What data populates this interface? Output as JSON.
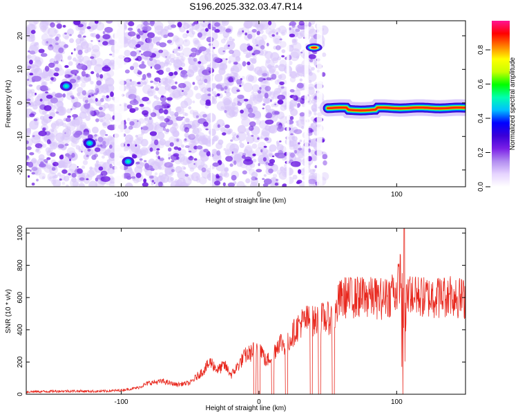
{
  "title": "S196.2025.332.03.47.R14",
  "chart_data": [
    {
      "type": "heatmap",
      "name": "spectrogram",
      "xlabel": "Height of straight line (km)",
      "ylabel": "Frequency (Hz)",
      "xlim": [
        -169,
        150
      ],
      "ylim": [
        -25,
        24.5
      ],
      "xticks": [
        -100,
        0,
        100
      ],
      "xtick_labels": [
        "-100",
        "0",
        "100"
      ],
      "yticks": [
        20,
        10,
        0,
        -10,
        -20
      ],
      "ytick_labels": [
        "20",
        "10",
        "0",
        "-10",
        "-20"
      ],
      "colorbar": {
        "label": "Normalized spectral amplitude",
        "range": [
          0,
          0.97
        ],
        "ticks": [
          0,
          0.2,
          0.4,
          0.6,
          0.8
        ],
        "tick_labels": [
          "0.0",
          "0.2",
          "0.4",
          "0.6",
          "0.8"
        ],
        "colormap": [
          "#ffffff",
          "#e6d4ff",
          "#b28cf0",
          "#7a1fe6",
          "#3a00d8",
          "#0000ff",
          "#00bfff",
          "#00ffb0",
          "#00ff00",
          "#c8ff00",
          "#ffff00",
          "#ff8000",
          "#ff0000",
          "#ff1493"
        ]
      },
      "features": [
        {
          "label": "noise region",
          "x_range": [
            -169,
            48
          ],
          "note": "scattered low-amplitude purple speckle"
        },
        {
          "label": "strong tone",
          "x": 40,
          "y": 16.5,
          "amplitude": 0.9
        },
        {
          "label": "tone",
          "x": -140,
          "y": 5,
          "amplitude": 0.3
        },
        {
          "label": "tone",
          "x": -123,
          "y": -12,
          "amplitude": 0.35
        },
        {
          "label": "tone",
          "x": -95,
          "y": -17.5,
          "amplitude": 0.3
        },
        {
          "label": "ridge",
          "x_range": [
            50,
            150
          ],
          "y_approx": -1.5,
          "amplitude": 0.9
        }
      ]
    },
    {
      "type": "line",
      "name": "snr",
      "xlabel": "Height of straight line (km)",
      "ylabel": "SNR (10 * v/v)",
      "xlim": [
        -169,
        150
      ],
      "ylim": [
        0,
        1030
      ],
      "xticks": [
        -100,
        0,
        100
      ],
      "xtick_labels": [
        "-100",
        "0",
        "100"
      ],
      "yticks": [
        0,
        200,
        400,
        600,
        800,
        1000
      ],
      "ytick_labels": [
        "0",
        "200",
        "400",
        "600",
        "800",
        "1000"
      ],
      "color": "#e8281e",
      "series": [
        {
          "name": "SNR",
          "x": [
            -169,
            -140,
            -115,
            -100,
            -88,
            -80,
            -70,
            -60,
            -50,
            -40,
            -35,
            -30,
            -25,
            -20,
            -15,
            -10,
            -5,
            0,
            5,
            10,
            15,
            20,
            25,
            30,
            35,
            40,
            45,
            50,
            55,
            58,
            62,
            70,
            80,
            90,
            95,
            100,
            103,
            105,
            106,
            107,
            110,
            120,
            130,
            140,
            150
          ],
          "y": [
            15,
            20,
            18,
            25,
            40,
            70,
            80,
            60,
            70,
            150,
            200,
            150,
            180,
            120,
            180,
            240,
            260,
            320,
            200,
            250,
            330,
            300,
            380,
            440,
            460,
            450,
            470,
            470,
            470,
            580,
            600,
            600,
            600,
            590,
            610,
            640,
            760,
            200,
            150,
            600,
            620,
            600,
            600,
            610,
            590
          ]
        },
        {
          "name": "dropouts",
          "x": [
            -3,
            0,
            10,
            20,
            38,
            44,
            54
          ],
          "y": [
            0,
            0,
            0,
            0,
            0,
            0,
            0
          ]
        }
      ]
    }
  ]
}
